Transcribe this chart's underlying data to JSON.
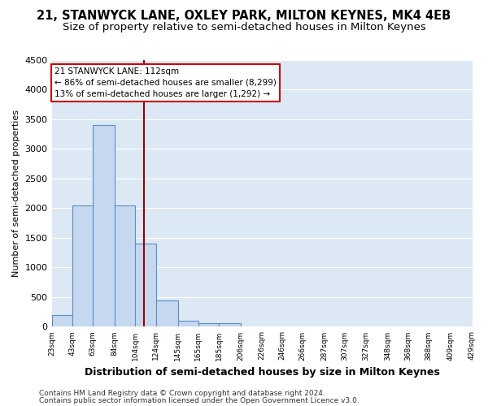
{
  "title1": "21, STANWYCK LANE, OXLEY PARK, MILTON KEYNES, MK4 4EB",
  "title2": "Size of property relative to semi-detached houses in Milton Keynes",
  "xlabel": "Distribution of semi-detached houses by size in Milton Keynes",
  "ylabel": "Number of semi-detached properties",
  "footnote1": "Contains HM Land Registry data © Crown copyright and database right 2024.",
  "footnote2": "Contains public sector information licensed under the Open Government Licence v3.0.",
  "annotation_title": "21 STANWYCK LANE: 112sqm",
  "annotation_line1": "← 86% of semi-detached houses are smaller (8,299)",
  "annotation_line2": "13% of semi-detached houses are larger (1,292) →",
  "property_size": 112,
  "bar_left_edges": [
    23,
    43,
    63,
    84,
    104,
    124,
    145,
    165,
    185,
    206,
    226,
    246,
    266,
    287,
    307,
    327,
    348,
    368,
    388,
    409
  ],
  "bar_heights": [
    200,
    2050,
    3400,
    2050,
    1400,
    450,
    100,
    55,
    60,
    0,
    0,
    0,
    0,
    0,
    0,
    0,
    0,
    0,
    0,
    0
  ],
  "bar_color": "#c5d8f0",
  "bar_edge_color": "#5b8ec4",
  "vline_color": "#990000",
  "vline_x": 112,
  "ylim": [
    0,
    4500
  ],
  "yticks": [
    0,
    500,
    1000,
    1500,
    2000,
    2500,
    3000,
    3500,
    4000,
    4500
  ],
  "xtick_labels": [
    "23sqm",
    "43sqm",
    "63sqm",
    "84sqm",
    "104sqm",
    "124sqm",
    "145sqm",
    "165sqm",
    "185sqm",
    "206sqm",
    "226sqm",
    "246sqm",
    "266sqm",
    "287sqm",
    "307sqm",
    "327sqm",
    "348sqm",
    "368sqm",
    "388sqm",
    "409sqm",
    "429sqm"
  ],
  "bg_color": "#dde8f5",
  "grid_color": "#ffffff",
  "fig_bg_color": "#ffffff",
  "annotation_box_color": "#ffffff",
  "annotation_box_edge_color": "#cc0000",
  "title1_fontsize": 10.5,
  "title2_fontsize": 9.5,
  "xlabel_fontsize": 9,
  "ylabel_fontsize": 8
}
